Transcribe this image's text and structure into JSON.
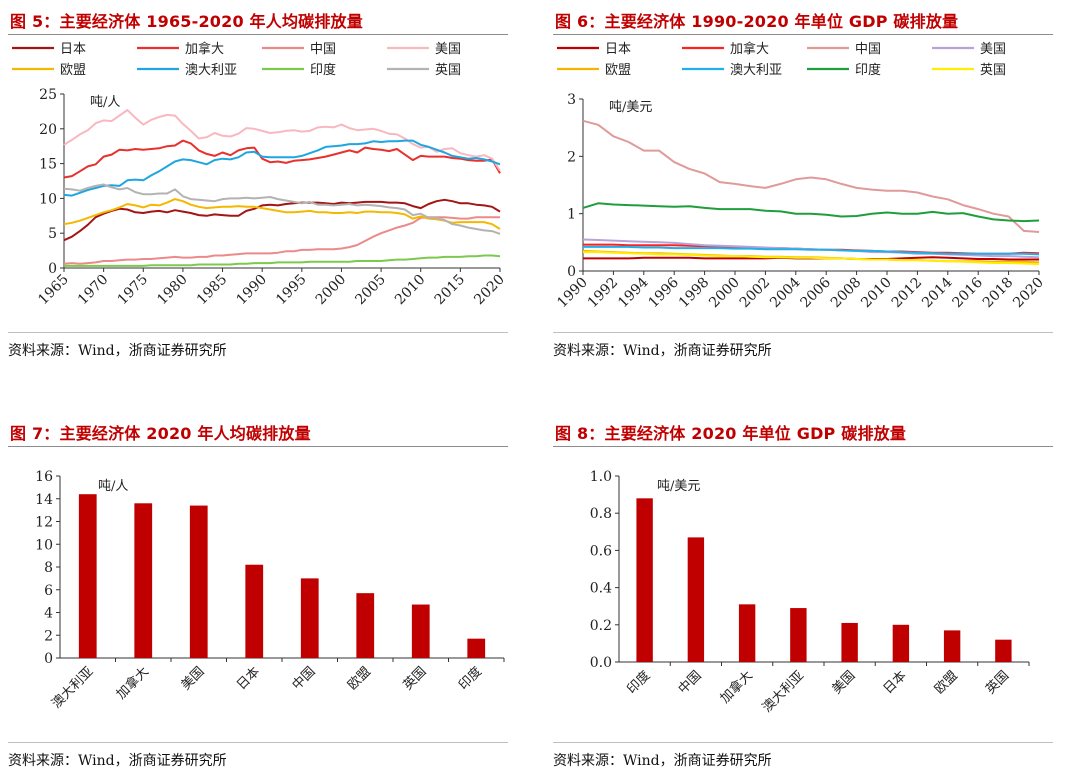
{
  "source_text": "资料来源：Wind，浙商证券研究所",
  "colors": {
    "title": "#c00000",
    "bar": "#c00000",
    "jp": "#a31515",
    "ca": "#e8302c",
    "cn": "#ec8a8a",
    "us": "#f8b8c0",
    "eu": "#f5b800",
    "au": "#1fa6e0",
    "in": "#7cc94e",
    "uk": "#b3b3b3",
    "jp6": "#c00000",
    "ca6": "#ff2020",
    "cn6": "#e09a9a",
    "us6": "#b7a3d8",
    "eu6": "#f5b400",
    "au6": "#20b0e8",
    "in6": "#1e9e3c",
    "uk6": "#ffee00"
  },
  "charts": [
    {
      "id": "fig5",
      "title": "图 5：主要经济体 1965-2020 年人均碳排放量",
      "chart_data": {
        "type": "line",
        "title": "主要经济体 1965-2020 年人均碳排放量",
        "unit": "吨/人",
        "ylim": [
          0,
          25
        ],
        "yticks": [
          "0",
          "5",
          "10",
          "15",
          "20",
          "25"
        ],
        "x_start": 1965,
        "x_end": 2020,
        "xticks": [
          "1965",
          "1970",
          "1975",
          "1980",
          "1985",
          "1990",
          "1995",
          "2000",
          "2005",
          "2010",
          "2015",
          "2020"
        ],
        "legend_position": "top",
        "series": [
          {
            "name": "日本",
            "color_key": "jp",
            "values": [
              4.0,
              4.5,
              5.3,
              6.2,
              7.3,
              7.8,
              8.2,
              8.5,
              8.4,
              8.0,
              7.9,
              8.1,
              8.2,
              8.0,
              8.3,
              8.1,
              7.9,
              7.6,
              7.5,
              7.7,
              7.6,
              7.5,
              7.5,
              8.2,
              8.5,
              9.0,
              9.1,
              9.0,
              9.2,
              9.3,
              9.4,
              9.4,
              9.4,
              9.3,
              9.2,
              9.4,
              9.3,
              9.4,
              9.5,
              9.5,
              9.5,
              9.4,
              9.4,
              9.3,
              8.9,
              8.6,
              9.2,
              9.6,
              9.8,
              9.6,
              9.3,
              9.3,
              9.1,
              9.0,
              8.8,
              8.1
            ]
          },
          {
            "name": "加拿大",
            "color_key": "ca",
            "values": [
              13.0,
              13.2,
              13.9,
              14.6,
              14.9,
              16.0,
              16.3,
              17.0,
              16.9,
              17.1,
              17.0,
              17.1,
              17.2,
              17.5,
              17.6,
              18.3,
              17.9,
              16.9,
              16.4,
              16.1,
              16.6,
              16.2,
              16.9,
              17.2,
              17.3,
              15.7,
              15.2,
              15.3,
              15.1,
              15.4,
              15.5,
              15.6,
              15.8,
              16.0,
              16.3,
              16.6,
              16.9,
              16.6,
              17.3,
              17.1,
              17.0,
              16.8,
              17.1,
              16.3,
              15.5,
              16.1,
              16.0,
              16.0,
              16.0,
              15.8,
              15.7,
              15.5,
              15.4,
              15.4,
              15.6,
              13.6
            ]
          },
          {
            "name": "中国",
            "color_key": "cn",
            "values": [
              0.6,
              0.7,
              0.6,
              0.7,
              0.8,
              1.0,
              1.0,
              1.1,
              1.2,
              1.2,
              1.3,
              1.3,
              1.4,
              1.5,
              1.6,
              1.5,
              1.5,
              1.6,
              1.6,
              1.8,
              1.8,
              1.9,
              2.0,
              2.1,
              2.1,
              2.1,
              2.1,
              2.2,
              2.4,
              2.4,
              2.6,
              2.6,
              2.7,
              2.7,
              2.7,
              2.8,
              3.0,
              3.3,
              3.9,
              4.5,
              5.0,
              5.4,
              5.8,
              6.1,
              6.5,
              7.2,
              7.3,
              7.3,
              7.3,
              7.2,
              7.1,
              7.1,
              7.3,
              7.3,
              7.3,
              7.3
            ]
          },
          {
            "name": "美国",
            "color_key": "us",
            "values": [
              17.7,
              18.4,
              19.2,
              19.8,
              20.8,
              21.2,
              21.1,
              21.9,
              22.7,
              21.6,
              20.6,
              21.3,
              21.7,
              22.0,
              21.9,
              20.7,
              19.7,
              18.6,
              18.8,
              19.4,
              19.0,
              18.9,
              19.3,
              20.1,
              20.0,
              19.7,
              19.4,
              19.5,
              19.7,
              19.8,
              19.6,
              19.7,
              20.2,
              20.3,
              20.2,
              20.6,
              20.1,
              19.8,
              19.9,
              20.0,
              19.7,
              19.3,
              19.2,
              18.6,
              17.8,
              17.3,
              17.4,
              16.7,
              17.1,
              17.2,
              16.5,
              16.2,
              16.0,
              16.2,
              15.7,
              14.0
            ]
          },
          {
            "name": "欧盟",
            "color_key": "eu",
            "values": [
              6.3,
              6.5,
              6.8,
              7.2,
              7.6,
              8.0,
              8.3,
              8.7,
              9.2,
              9.0,
              8.7,
              9.1,
              9.0,
              9.4,
              9.9,
              9.6,
              9.1,
              8.8,
              8.6,
              8.7,
              8.8,
              8.8,
              8.9,
              8.8,
              8.8,
              8.6,
              8.4,
              8.2,
              8.0,
              8.0,
              8.1,
              8.2,
              8.0,
              8.0,
              7.9,
              7.9,
              8.0,
              7.9,
              8.1,
              8.1,
              8.0,
              8.0,
              7.9,
              7.7,
              7.1,
              7.4,
              7.1,
              7.0,
              6.8,
              6.5,
              6.6,
              6.6,
              6.6,
              6.6,
              6.3,
              5.6
            ]
          },
          {
            "name": "澳大利亚",
            "color_key": "au",
            "values": [
              10.5,
              10.4,
              10.8,
              11.2,
              11.5,
              11.8,
              11.9,
              11.8,
              12.6,
              12.7,
              12.6,
              13.3,
              13.9,
              14.6,
              15.3,
              15.6,
              15.5,
              15.2,
              14.9,
              15.5,
              15.7,
              15.6,
              15.9,
              16.6,
              16.7,
              16.0,
              15.9,
              15.9,
              15.9,
              15.9,
              16.1,
              16.5,
              16.9,
              17.4,
              17.5,
              17.6,
              17.8,
              17.8,
              17.9,
              18.2,
              18.1,
              18.2,
              18.2,
              18.3,
              18.3,
              17.7,
              17.4,
              17.0,
              16.6,
              16.1,
              15.9,
              15.7,
              15.8,
              15.6,
              15.3,
              14.9
            ]
          },
          {
            "name": "印度",
            "color_key": "in",
            "values": [
              0.3,
              0.3,
              0.3,
              0.3,
              0.3,
              0.3,
              0.3,
              0.3,
              0.3,
              0.3,
              0.3,
              0.4,
              0.4,
              0.4,
              0.4,
              0.4,
              0.4,
              0.5,
              0.5,
              0.5,
              0.5,
              0.5,
              0.6,
              0.6,
              0.7,
              0.7,
              0.7,
              0.8,
              0.8,
              0.8,
              0.8,
              0.9,
              0.9,
              0.9,
              0.9,
              0.9,
              0.9,
              1.0,
              1.0,
              1.0,
              1.0,
              1.1,
              1.2,
              1.2,
              1.3,
              1.4,
              1.5,
              1.5,
              1.6,
              1.6,
              1.6,
              1.7,
              1.7,
              1.8,
              1.8,
              1.7
            ]
          },
          {
            "name": "英国",
            "color_key": "uk",
            "values": [
              11.4,
              11.3,
              11.1,
              11.5,
              11.8,
              12.0,
              11.6,
              11.3,
              11.5,
              10.9,
              10.6,
              10.6,
              10.7,
              10.7,
              11.3,
              10.3,
              9.9,
              9.8,
              9.7,
              9.6,
              9.9,
              10.0,
              10.0,
              10.1,
              10.0,
              10.1,
              10.2,
              9.9,
              9.7,
              9.5,
              9.3,
              9.5,
              9.1,
              9.1,
              9.0,
              9.1,
              9.2,
              9.0,
              9.1,
              9.0,
              8.9,
              8.7,
              8.6,
              8.4,
              7.6,
              7.8,
              7.2,
              7.2,
              6.9,
              6.3,
              6.1,
              5.8,
              5.6,
              5.4,
              5.3,
              4.9
            ]
          }
        ]
      }
    },
    {
      "id": "fig6",
      "title": "图 6：主要经济体 1990-2020 年单位 GDP 碳排放量",
      "chart_data": {
        "type": "line",
        "title": "主要经济体 1990-2020 年单位 GDP 碳排放量",
        "unit": "吨/美元",
        "ylim": [
          0,
          3
        ],
        "yticks": [
          "0",
          "1",
          "2",
          "3"
        ],
        "x_start": 1990,
        "x_end": 2020,
        "xticks": [
          "1990",
          "1992",
          "1994",
          "1996",
          "1998",
          "2000",
          "2002",
          "2004",
          "2006",
          "2008",
          "2010",
          "2012",
          "2014",
          "2016",
          "2018",
          "2020"
        ],
        "legend_position": "top",
        "series": [
          {
            "name": "日本",
            "color_key": "jp6",
            "values": [
              0.22,
              0.22,
              0.22,
              0.22,
              0.23,
              0.23,
              0.23,
              0.23,
              0.22,
              0.22,
              0.22,
              0.22,
              0.22,
              0.23,
              0.22,
              0.22,
              0.22,
              0.22,
              0.21,
              0.21,
              0.21,
              0.22,
              0.23,
              0.24,
              0.23,
              0.22,
              0.21,
              0.21,
              0.2,
              0.2,
              0.2
            ]
          },
          {
            "name": "加拿大",
            "color_key": "ca6",
            "values": [
              0.46,
              0.46,
              0.46,
              0.45,
              0.45,
              0.45,
              0.45,
              0.44,
              0.43,
              0.42,
              0.42,
              0.41,
              0.4,
              0.4,
              0.39,
              0.38,
              0.37,
              0.37,
              0.36,
              0.35,
              0.34,
              0.34,
              0.33,
              0.32,
              0.32,
              0.31,
              0.3,
              0.3,
              0.3,
              0.32,
              0.31
            ]
          },
          {
            "name": "中国",
            "color_key": "cn6",
            "values": [
              2.62,
              2.55,
              2.35,
              2.25,
              2.1,
              2.1,
              1.9,
              1.78,
              1.7,
              1.55,
              1.52,
              1.48,
              1.45,
              1.52,
              1.6,
              1.63,
              1.6,
              1.52,
              1.45,
              1.42,
              1.4,
              1.4,
              1.37,
              1.3,
              1.25,
              1.15,
              1.08,
              1.0,
              0.95,
              0.7,
              0.68
            ]
          },
          {
            "name": "美国",
            "color_key": "us6",
            "values": [
              0.55,
              0.54,
              0.53,
              0.52,
              0.51,
              0.5,
              0.49,
              0.47,
              0.45,
              0.44,
              0.43,
              0.42,
              0.41,
              0.4,
              0.39,
              0.38,
              0.37,
              0.36,
              0.35,
              0.33,
              0.33,
              0.32,
              0.3,
              0.3,
              0.29,
              0.28,
              0.27,
              0.26,
              0.26,
              0.25,
              0.24
            ]
          },
          {
            "name": "欧盟",
            "color_key": "eu6",
            "values": [
              0.35,
              0.34,
              0.33,
              0.32,
              0.31,
              0.31,
              0.3,
              0.29,
              0.28,
              0.27,
              0.26,
              0.26,
              0.25,
              0.25,
              0.24,
              0.24,
              0.23,
              0.22,
              0.21,
              0.2,
              0.2,
              0.19,
              0.19,
              0.18,
              0.17,
              0.17,
              0.17,
              0.16,
              0.16,
              0.16,
              0.15
            ]
          },
          {
            "name": "澳大利亚",
            "color_key": "au6",
            "values": [
              0.42,
              0.42,
              0.42,
              0.42,
              0.41,
              0.41,
              0.4,
              0.4,
              0.4,
              0.4,
              0.39,
              0.39,
              0.38,
              0.38,
              0.38,
              0.37,
              0.37,
              0.36,
              0.35,
              0.35,
              0.34,
              0.33,
              0.32,
              0.31,
              0.3,
              0.3,
              0.3,
              0.3,
              0.3,
              0.3,
              0.29
            ]
          },
          {
            "name": "印度",
            "color_key": "in6",
            "values": [
              1.1,
              1.18,
              1.16,
              1.15,
              1.14,
              1.13,
              1.12,
              1.13,
              1.1,
              1.08,
              1.08,
              1.08,
              1.05,
              1.04,
              1.0,
              1.0,
              0.98,
              0.95,
              0.96,
              1.0,
              1.02,
              1.0,
              1.0,
              1.03,
              1.0,
              1.01,
              0.95,
              0.9,
              0.88,
              0.87,
              0.88
            ]
          },
          {
            "name": "英国",
            "color_key": "uk6",
            "values": [
              0.33,
              0.33,
              0.32,
              0.31,
              0.3,
              0.29,
              0.29,
              0.28,
              0.27,
              0.26,
              0.26,
              0.25,
              0.24,
              0.24,
              0.23,
              0.23,
              0.22,
              0.22,
              0.21,
              0.2,
              0.2,
              0.19,
              0.19,
              0.18,
              0.17,
              0.16,
              0.15,
              0.14,
              0.14,
              0.13,
              0.12
            ]
          }
        ]
      }
    },
    {
      "id": "fig7",
      "title": "图 7：主要经济体 2020 年人均碳排放量",
      "chart_data": {
        "type": "bar",
        "title": "主要经济体 2020 年人均碳排放量",
        "unit": "吨/人",
        "ylim": [
          0,
          16
        ],
        "yticks": [
          "0",
          "2",
          "4",
          "6",
          "8",
          "10",
          "12",
          "14",
          "16"
        ],
        "categories": [
          "澳大利亚",
          "加拿大",
          "美国",
          "日本",
          "中国",
          "欧盟",
          "英国",
          "印度"
        ],
        "values": [
          14.4,
          13.6,
          13.4,
          8.2,
          7.0,
          5.7,
          4.7,
          1.7
        ]
      }
    },
    {
      "id": "fig8",
      "title": "图 8：主要经济体 2020 年单位 GDP 碳排放量",
      "chart_data": {
        "type": "bar",
        "title": "主要经济体 2020 年单位 GDP 碳排放量",
        "unit": "吨/美元",
        "ylim": [
          0,
          1.0
        ],
        "yticks": [
          "0.0",
          "0.2",
          "0.4",
          "0.6",
          "0.8",
          "1.0"
        ],
        "categories": [
          "印度",
          "中国",
          "加拿大",
          "澳大利亚",
          "美国",
          "日本",
          "欧盟",
          "英国"
        ],
        "values": [
          0.88,
          0.67,
          0.31,
          0.29,
          0.21,
          0.2,
          0.17,
          0.12
        ]
      }
    }
  ]
}
